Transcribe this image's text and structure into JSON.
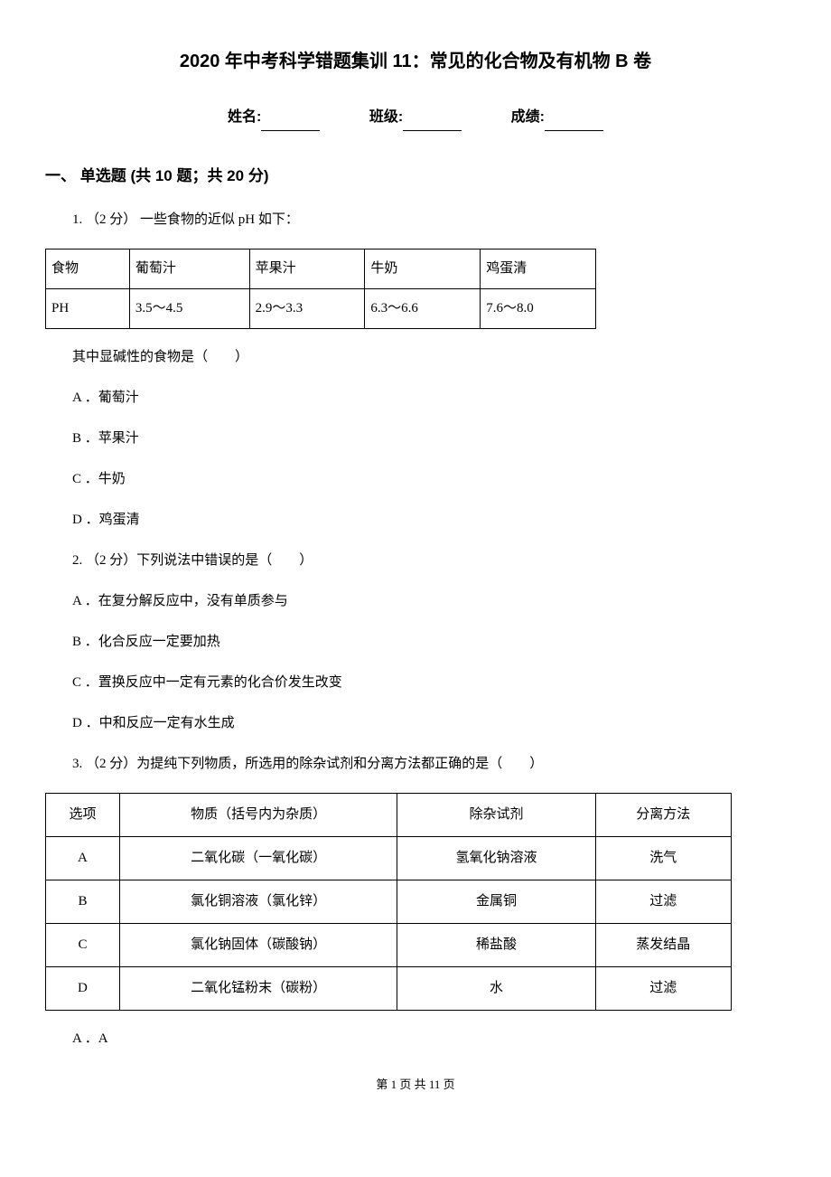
{
  "title": "2020 年中考科学错题集训 11：常见的化合物及有机物 B 卷",
  "info": {
    "name_label": "姓名:",
    "class_label": "班级:",
    "score_label": "成绩:"
  },
  "section": {
    "header": "一、 单选题 (共 10 题；共 20 分)"
  },
  "q1": {
    "stem": "1.  （2 分）  一些食物的近似 pH 如下：",
    "table": {
      "headers": [
        "食物",
        "葡萄汁",
        "苹果汁",
        "牛奶",
        "鸡蛋清"
      ],
      "row_label": "PH",
      "row_values": [
        "3.5～4.5",
        "2.9～3.3",
        "6.3～6.6",
        "7.6～8.0"
      ]
    },
    "followup": "其中显碱性的食物是（　　）",
    "options": {
      "A": "A ．葡萄汁",
      "B": "B ．苹果汁",
      "C": "C ．牛奶",
      "D": "D ．鸡蛋清"
    }
  },
  "q2": {
    "stem": "2.  （2 分）下列说法中错误的是（　　）",
    "options": {
      "A": "A ．在复分解反应中，没有单质参与",
      "B": "B ．化合反应一定要加热",
      "C": "C ．置换反应中一定有元素的化合价发生改变",
      "D": "D ．中和反应一定有水生成"
    }
  },
  "q3": {
    "stem": "3.  （2 分）为提纯下列物质，所选用的除杂试剂和分离方法都正确的是（　　）",
    "table": {
      "headers": [
        "选项",
        "物质（括号内为杂质）",
        "除杂试剂",
        "分离方法"
      ],
      "rows": [
        [
          "A",
          "二氧化碳（一氧化碳）",
          "氢氧化钠溶液",
          "洗气"
        ],
        [
          "B",
          "氯化铜溶液（氯化锌）",
          "金属铜",
          "过滤"
        ],
        [
          "C",
          "氯化钠固体（碳酸钠）",
          "稀盐酸",
          "蒸发结晶"
        ],
        [
          "D",
          "二氧化锰粉末（碳粉）",
          "水",
          "过滤"
        ]
      ]
    },
    "options": {
      "A": "A ．A"
    }
  },
  "footer": "第 1 页 共 11 页"
}
